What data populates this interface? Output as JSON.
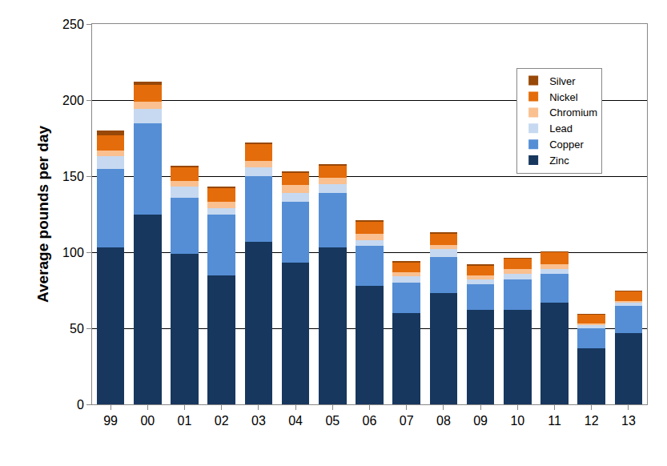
{
  "chart_data": {
    "type": "bar",
    "stacked": true,
    "y_label": "Average pounds per day",
    "categories": [
      "99",
      "00",
      "01",
      "02",
      "03",
      "04",
      "05",
      "06",
      "07",
      "08",
      "09",
      "10",
      "11",
      "12",
      "13"
    ],
    "series": [
      {
        "name": "Zinc",
        "color": "#17375E",
        "values": [
          103,
          125,
          99,
          85,
          107,
          93,
          103,
          78,
          60,
          73,
          62,
          62,
          67,
          37,
          47
        ]
      },
      {
        "name": "Copper",
        "color": "#558ED5",
        "values": [
          52,
          60,
          37,
          40,
          43,
          40,
          36,
          26,
          20,
          24,
          17,
          20,
          19,
          13,
          18
        ]
      },
      {
        "name": "Lead",
        "color": "#C6D9F1",
        "values": [
          8,
          9,
          7,
          4,
          6,
          6,
          6,
          4,
          4,
          5,
          3,
          4,
          3,
          2,
          2
        ]
      },
      {
        "name": "Chromium",
        "color": "#FAC090",
        "values": [
          4,
          5,
          4,
          4,
          4,
          5,
          4,
          4,
          3,
          3,
          3,
          3,
          3,
          1,
          1
        ]
      },
      {
        "name": "Nickel",
        "color": "#E46C0A",
        "values": [
          10,
          11,
          9,
          9,
          11,
          8,
          8,
          8,
          6,
          7,
          6,
          7,
          8,
          6,
          6
        ]
      },
      {
        "name": "Silver",
        "color": "#984807",
        "values": [
          3,
          2,
          1,
          1,
          1,
          1,
          1,
          1,
          1,
          1,
          1,
          0.5,
          0.5,
          0.5,
          1
        ]
      }
    ],
    "ylim": [
      0,
      250
    ],
    "yticks": [
      0,
      50,
      100,
      150,
      200,
      250
    ],
    "grid": true,
    "legend": "top right"
  }
}
